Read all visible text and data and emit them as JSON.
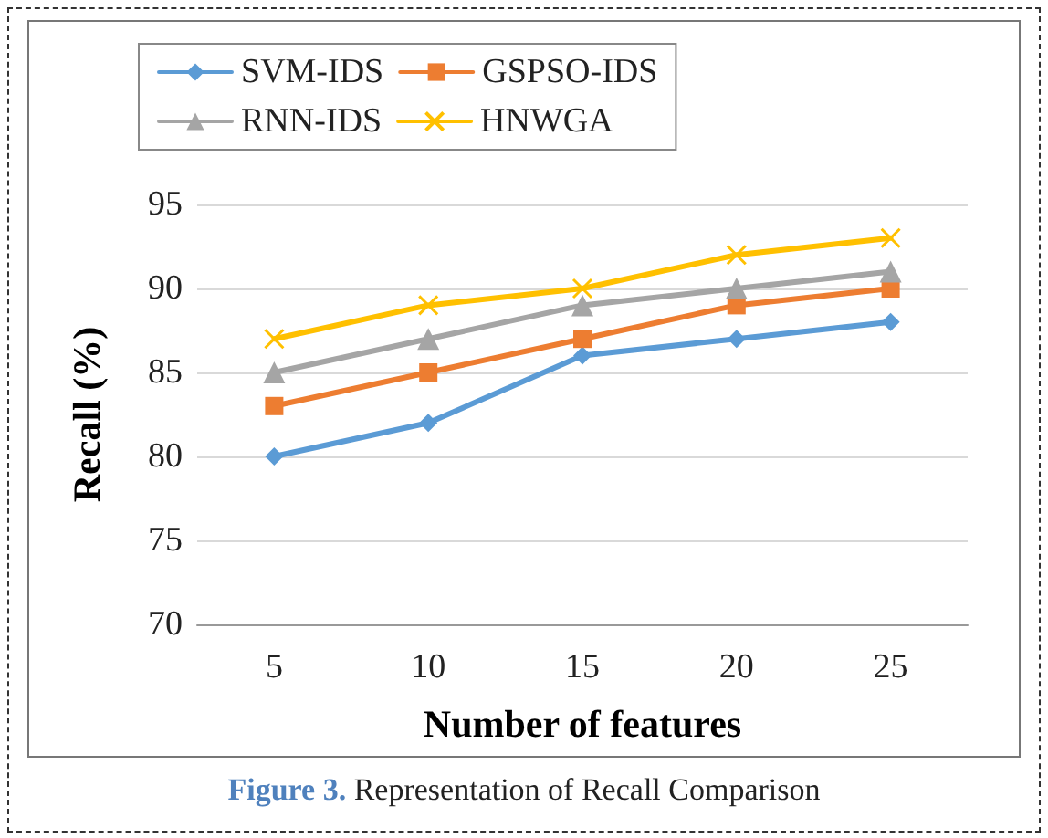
{
  "chart_data": {
    "type": "line",
    "xlabel": "Number of features",
    "ylabel": "Recall (%)",
    "categories": [
      "5",
      "10",
      "15",
      "20",
      "25"
    ],
    "series": [
      {
        "name": "SVM-IDS",
        "color": "#5b9bd5",
        "marker": "diamond",
        "values": [
          80,
          82,
          86,
          87,
          88
        ]
      },
      {
        "name": "GSPSO-IDS",
        "color": "#ed7d31",
        "marker": "square",
        "values": [
          83,
          85,
          87,
          89,
          90
        ]
      },
      {
        "name": "RNN-IDS",
        "color": "#a5a5a5",
        "marker": "triangle",
        "values": [
          85,
          87,
          89,
          90,
          91
        ]
      },
      {
        "name": "HNWGA",
        "color": "#ffc000",
        "marker": "cross",
        "values": [
          87,
          89,
          90,
          92,
          93
        ]
      }
    ],
    "ylim": [
      70,
      95
    ],
    "yticks": [
      70,
      75,
      80,
      85,
      90,
      95
    ],
    "grid": "y",
    "legend": "top",
    "line_style": "solid",
    "annotations": [
      "Figure 3. Representation of Recall Comparison"
    ]
  }
}
